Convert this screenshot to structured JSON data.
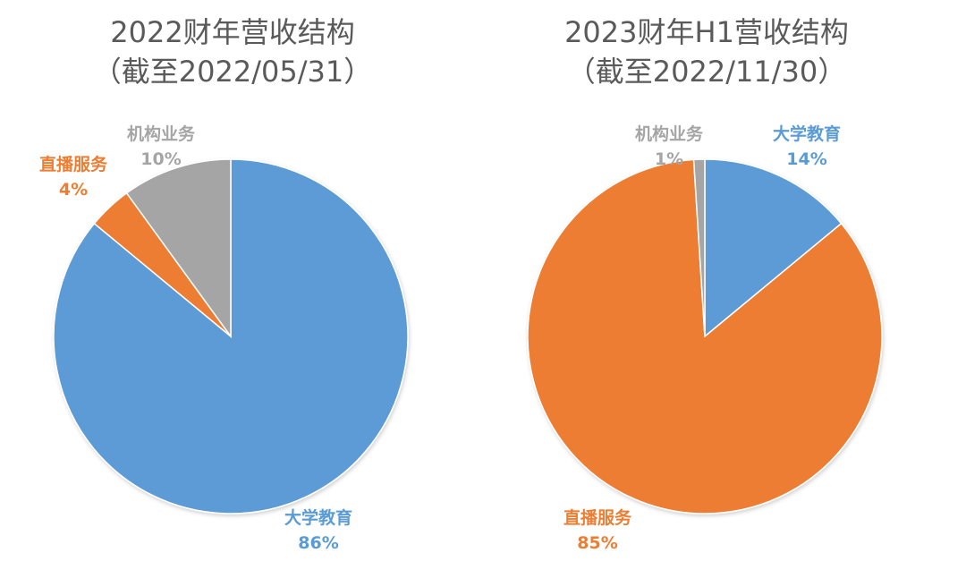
{
  "colors": {
    "大学教育": "#5b9bd5",
    "直播服务": "#ed7d31",
    "机构业务": "#a5a5a5"
  },
  "chart_data": [
    {
      "type": "pie",
      "title": "2022财年营收结构",
      "subtitle": "（截至2022/05/31）",
      "slices": [
        {
          "name": "大学教育",
          "value": 86,
          "label": "86%"
        },
        {
          "name": "直播服务",
          "value": 4,
          "label": "4%"
        },
        {
          "name": "机构业务",
          "value": 10,
          "label": "10%"
        }
      ]
    },
    {
      "type": "pie",
      "title": "2023财年H1营收结构",
      "subtitle": "（截至2022/11/30）",
      "slices": [
        {
          "name": "大学教育",
          "value": 14,
          "label": "14%"
        },
        {
          "name": "直播服务",
          "value": 85,
          "label": "85%"
        },
        {
          "name": "机构业务",
          "value": 1,
          "label": "1%"
        }
      ]
    }
  ]
}
